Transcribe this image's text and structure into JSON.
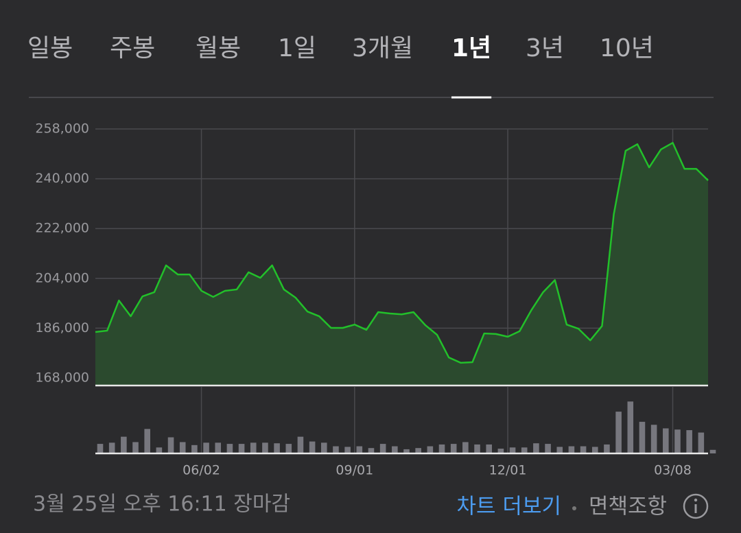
{
  "tabs": [
    "일봉",
    "주봉",
    "월봉",
    "1일",
    "3개월",
    "1년",
    "3년",
    "10년"
  ],
  "active_tab": 5,
  "chart_data": [
    {
      "type": "line",
      "categories": [
        null,
        null,
        null,
        null,
        null,
        null,
        null,
        null,
        null,
        "06/02",
        null,
        null,
        null,
        null,
        null,
        null,
        null,
        null,
        null,
        null,
        null,
        null,
        "09/01",
        null,
        null,
        null,
        null,
        null,
        null,
        null,
        null,
        null,
        null,
        null,
        null,
        "12/01",
        null,
        null,
        null,
        null,
        null,
        null,
        null,
        null,
        null,
        null,
        null,
        null,
        null,
        "03/08",
        null,
        null,
        null
      ],
      "values": [
        184600,
        185100,
        196000,
        190300,
        197500,
        199000,
        208700,
        205400,
        205400,
        199500,
        197300,
        199500,
        200000,
        206200,
        204200,
        208700,
        200000,
        197000,
        192000,
        190300,
        186100,
        186100,
        187300,
        185400,
        191800,
        191300,
        191000,
        191800,
        187100,
        183600,
        175400,
        173500,
        173700,
        184100,
        183900,
        182900,
        184900,
        192500,
        199000,
        203400,
        187300,
        185800,
        181600,
        186800,
        227200,
        250100,
        252500,
        244100,
        250600,
        253000,
        243600,
        243600,
        239400
      ],
      "color": "#22c02a",
      "ylim": [
        168000,
        258000
      ],
      "yticks": [
        {
          "value": 168000,
          "label": "168,000"
        },
        {
          "value": 186000,
          "label": "186,000"
        },
        {
          "value": 204000,
          "label": "204,000"
        },
        {
          "value": 222000,
          "label": "222,000"
        },
        {
          "value": 240000,
          "label": "240,000"
        },
        {
          "value": 258000,
          "label": "258,000"
        }
      ],
      "grid": true
    },
    {
      "type": "bar",
      "values": [
        16,
        18,
        28,
        19,
        41,
        10,
        27,
        19,
        14,
        18,
        18,
        16,
        16,
        18,
        18,
        17,
        16,
        28,
        20,
        18,
        12,
        11,
        12,
        9,
        16,
        12,
        7,
        9,
        12,
        15,
        16,
        19,
        15,
        15,
        8,
        10,
        10,
        17,
        16,
        11,
        12,
        12,
        11,
        15,
        70,
        87,
        53,
        48,
        42,
        40,
        39,
        35,
        6
      ],
      "color": "#77777e",
      "ylim": [
        0,
        100
      ]
    }
  ],
  "footer": {
    "time": "3월 25일 오후 16:11 장마감",
    "more": "차트 더보기",
    "disclaimer": "면책조항"
  }
}
